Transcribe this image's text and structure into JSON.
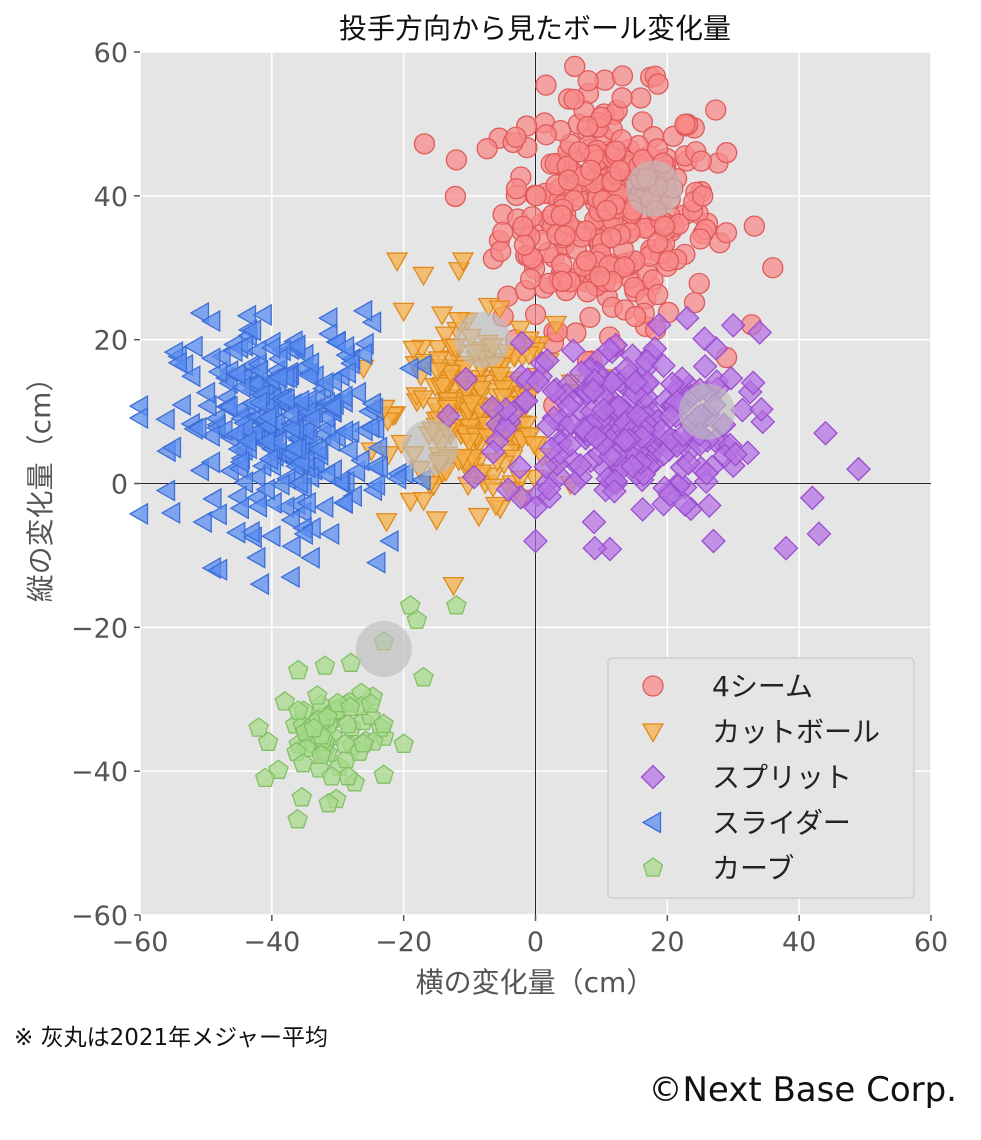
{
  "chart_data": {
    "type": "scatter",
    "title": "投手方向から見たボール変化量",
    "xlabel": "横の変化量（cm）",
    "ylabel": "縦の変化量（cm）",
    "xlim": [
      -60,
      60
    ],
    "ylim": [
      -60,
      60
    ],
    "xticks": [
      -60,
      -40,
      -20,
      0,
      20,
      40,
      60
    ],
    "yticks": [
      -60,
      -40,
      -20,
      0,
      20,
      40,
      60
    ],
    "tick_labels": {
      "x": [
        "−60",
        "−40",
        "−20",
        "0",
        "20",
        "40",
        "60"
      ],
      "y": [
        "−60",
        "−40",
        "−20",
        "0",
        "20",
        "40",
        "60"
      ]
    },
    "grid": true,
    "legend_position": "lower-right",
    "series": [
      {
        "name": "4シーム",
        "marker": "circle",
        "color": "#f88a8a",
        "edge": "#e05a5a",
        "center": [
          11,
          38
        ],
        "spread": [
          8,
          8
        ],
        "count": 340,
        "extra": [
          [
            -12,
            45
          ],
          [
            36,
            30
          ],
          [
            8,
            56
          ],
          [
            29,
            46
          ],
          [
            25,
            34
          ],
          [
            -3,
            20
          ],
          [
            12,
            19
          ]
        ]
      },
      {
        "name": "カットボール",
        "marker": "triangle-down",
        "color": "#f5b04c",
        "edge": "#e08a1a",
        "center": [
          -9,
          10
        ],
        "spread": [
          6,
          6
        ],
        "count": 240,
        "extra": [
          [
            -21,
            31
          ],
          [
            -17,
            29
          ],
          [
            -11,
            31
          ],
          [
            -20,
            24
          ],
          [
            -15,
            -5
          ],
          [
            -6,
            -3
          ],
          [
            -2,
            -2
          ],
          [
            2,
            17
          ],
          [
            -1,
            20
          ],
          [
            3,
            2
          ]
        ]
      },
      {
        "name": "スプリット",
        "marker": "diamond",
        "color": "#b673e3",
        "edge": "#9a4fd0",
        "center": [
          13,
          8
        ],
        "spread": [
          9,
          6
        ],
        "count": 260,
        "extra": [
          [
            49,
            2
          ],
          [
            44,
            7
          ],
          [
            43,
            -7
          ],
          [
            42,
            -2
          ],
          [
            38,
            -9
          ],
          [
            30,
            22
          ],
          [
            34,
            21
          ],
          [
            23,
            23
          ],
          [
            27,
            -8
          ],
          [
            9,
            -9
          ],
          [
            0,
            -8
          ]
        ]
      },
      {
        "name": "スライダー",
        "marker": "triangle-left",
        "color": "#5b8df0",
        "edge": "#3d6fd8",
        "center": [
          -38,
          8
        ],
        "spread": [
          8,
          7
        ],
        "count": 280,
        "extra": [
          [
            -26,
            24
          ],
          [
            -19,
            16
          ],
          [
            -22,
            -8
          ],
          [
            -24,
            -11
          ],
          [
            -37,
            -13
          ],
          [
            -48,
            -12
          ],
          [
            -55,
            5
          ],
          [
            -35,
            -7
          ],
          [
            -31,
            -7
          ],
          [
            -26,
            18
          ]
        ]
      },
      {
        "name": "カーブ",
        "marker": "pentagon",
        "color": "#a7d98c",
        "edge": "#82c064",
        "center": [
          -31,
          -35
        ],
        "spread": [
          4,
          4
        ],
        "count": 75,
        "extra": [
          [
            -19,
            -17
          ],
          [
            -12,
            -17
          ],
          [
            -18,
            -19
          ],
          [
            -17,
            -27
          ],
          [
            -23,
            -22
          ],
          [
            -28,
            -25
          ],
          [
            -36,
            -26
          ],
          [
            -42,
            -34
          ],
          [
            -41,
            -41
          ]
        ]
      }
    ],
    "mlb_averages": [
      [
        18,
        41
      ],
      [
        -8,
        20
      ],
      [
        26,
        10
      ],
      [
        -16,
        5
      ],
      [
        -23,
        -23
      ]
    ],
    "mlb_average_marker": "large-gray-circle"
  },
  "footnote": "※ 灰丸は2021年メジャー平均",
  "copyright": "©Next Base Corp."
}
